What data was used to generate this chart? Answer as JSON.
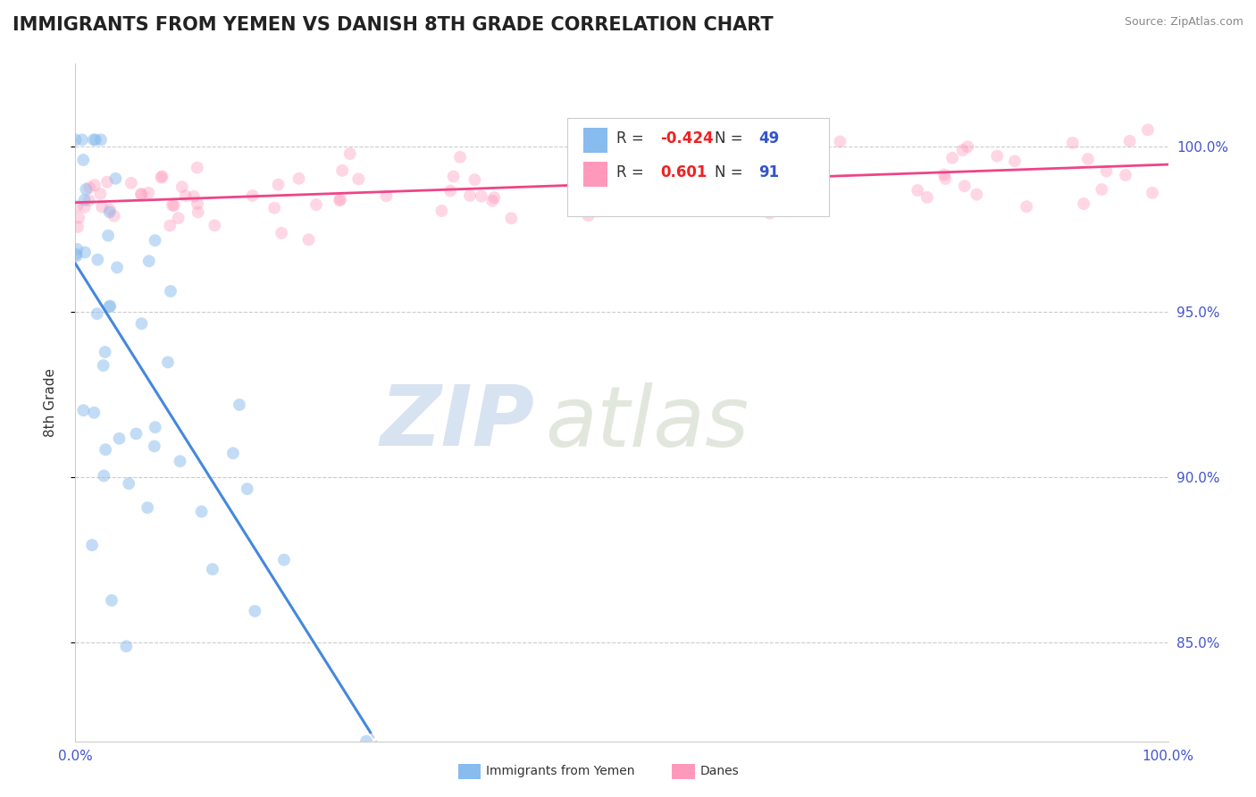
{
  "title": "IMMIGRANTS FROM YEMEN VS DANISH 8TH GRADE CORRELATION CHART",
  "source_text": "Source: ZipAtlas.com",
  "ylabel": "8th Grade",
  "watermark_zip": "ZIP",
  "watermark_atlas": "atlas",
  "xlim": [
    0.0,
    1.0
  ],
  "ylim": [
    0.82,
    1.025
  ],
  "blue_color": "#88BBEE",
  "pink_color": "#FF99BB",
  "trend_blue": "#4488DD",
  "trend_pink": "#EE4488",
  "trend_gray": "#AAAAAA",
  "legend_R_blue": "-0.424",
  "legend_N_blue": "49",
  "legend_R_pink": "0.601",
  "legend_N_pink": "91",
  "legend_label_blue": "Immigrants from Yemen",
  "legend_label_pink": "Danes",
  "background_color": "#FFFFFF",
  "grid_color": "#CCCCCC",
  "title_fontsize": 15,
  "label_fontsize": 11,
  "tick_fontsize": 11,
  "marker_size": 100,
  "blue_alpha": 0.5,
  "pink_alpha": 0.4,
  "y_ticks": [
    0.85,
    0.9,
    0.95,
    1.0
  ],
  "y_tick_labels": [
    "85.0%",
    "90.0%",
    "95.0%",
    "100.0%"
  ],
  "x_ticks": [
    0.0,
    1.0
  ],
  "x_tick_labels": [
    "0.0%",
    "100.0%"
  ],
  "tick_color": "#4455CC"
}
